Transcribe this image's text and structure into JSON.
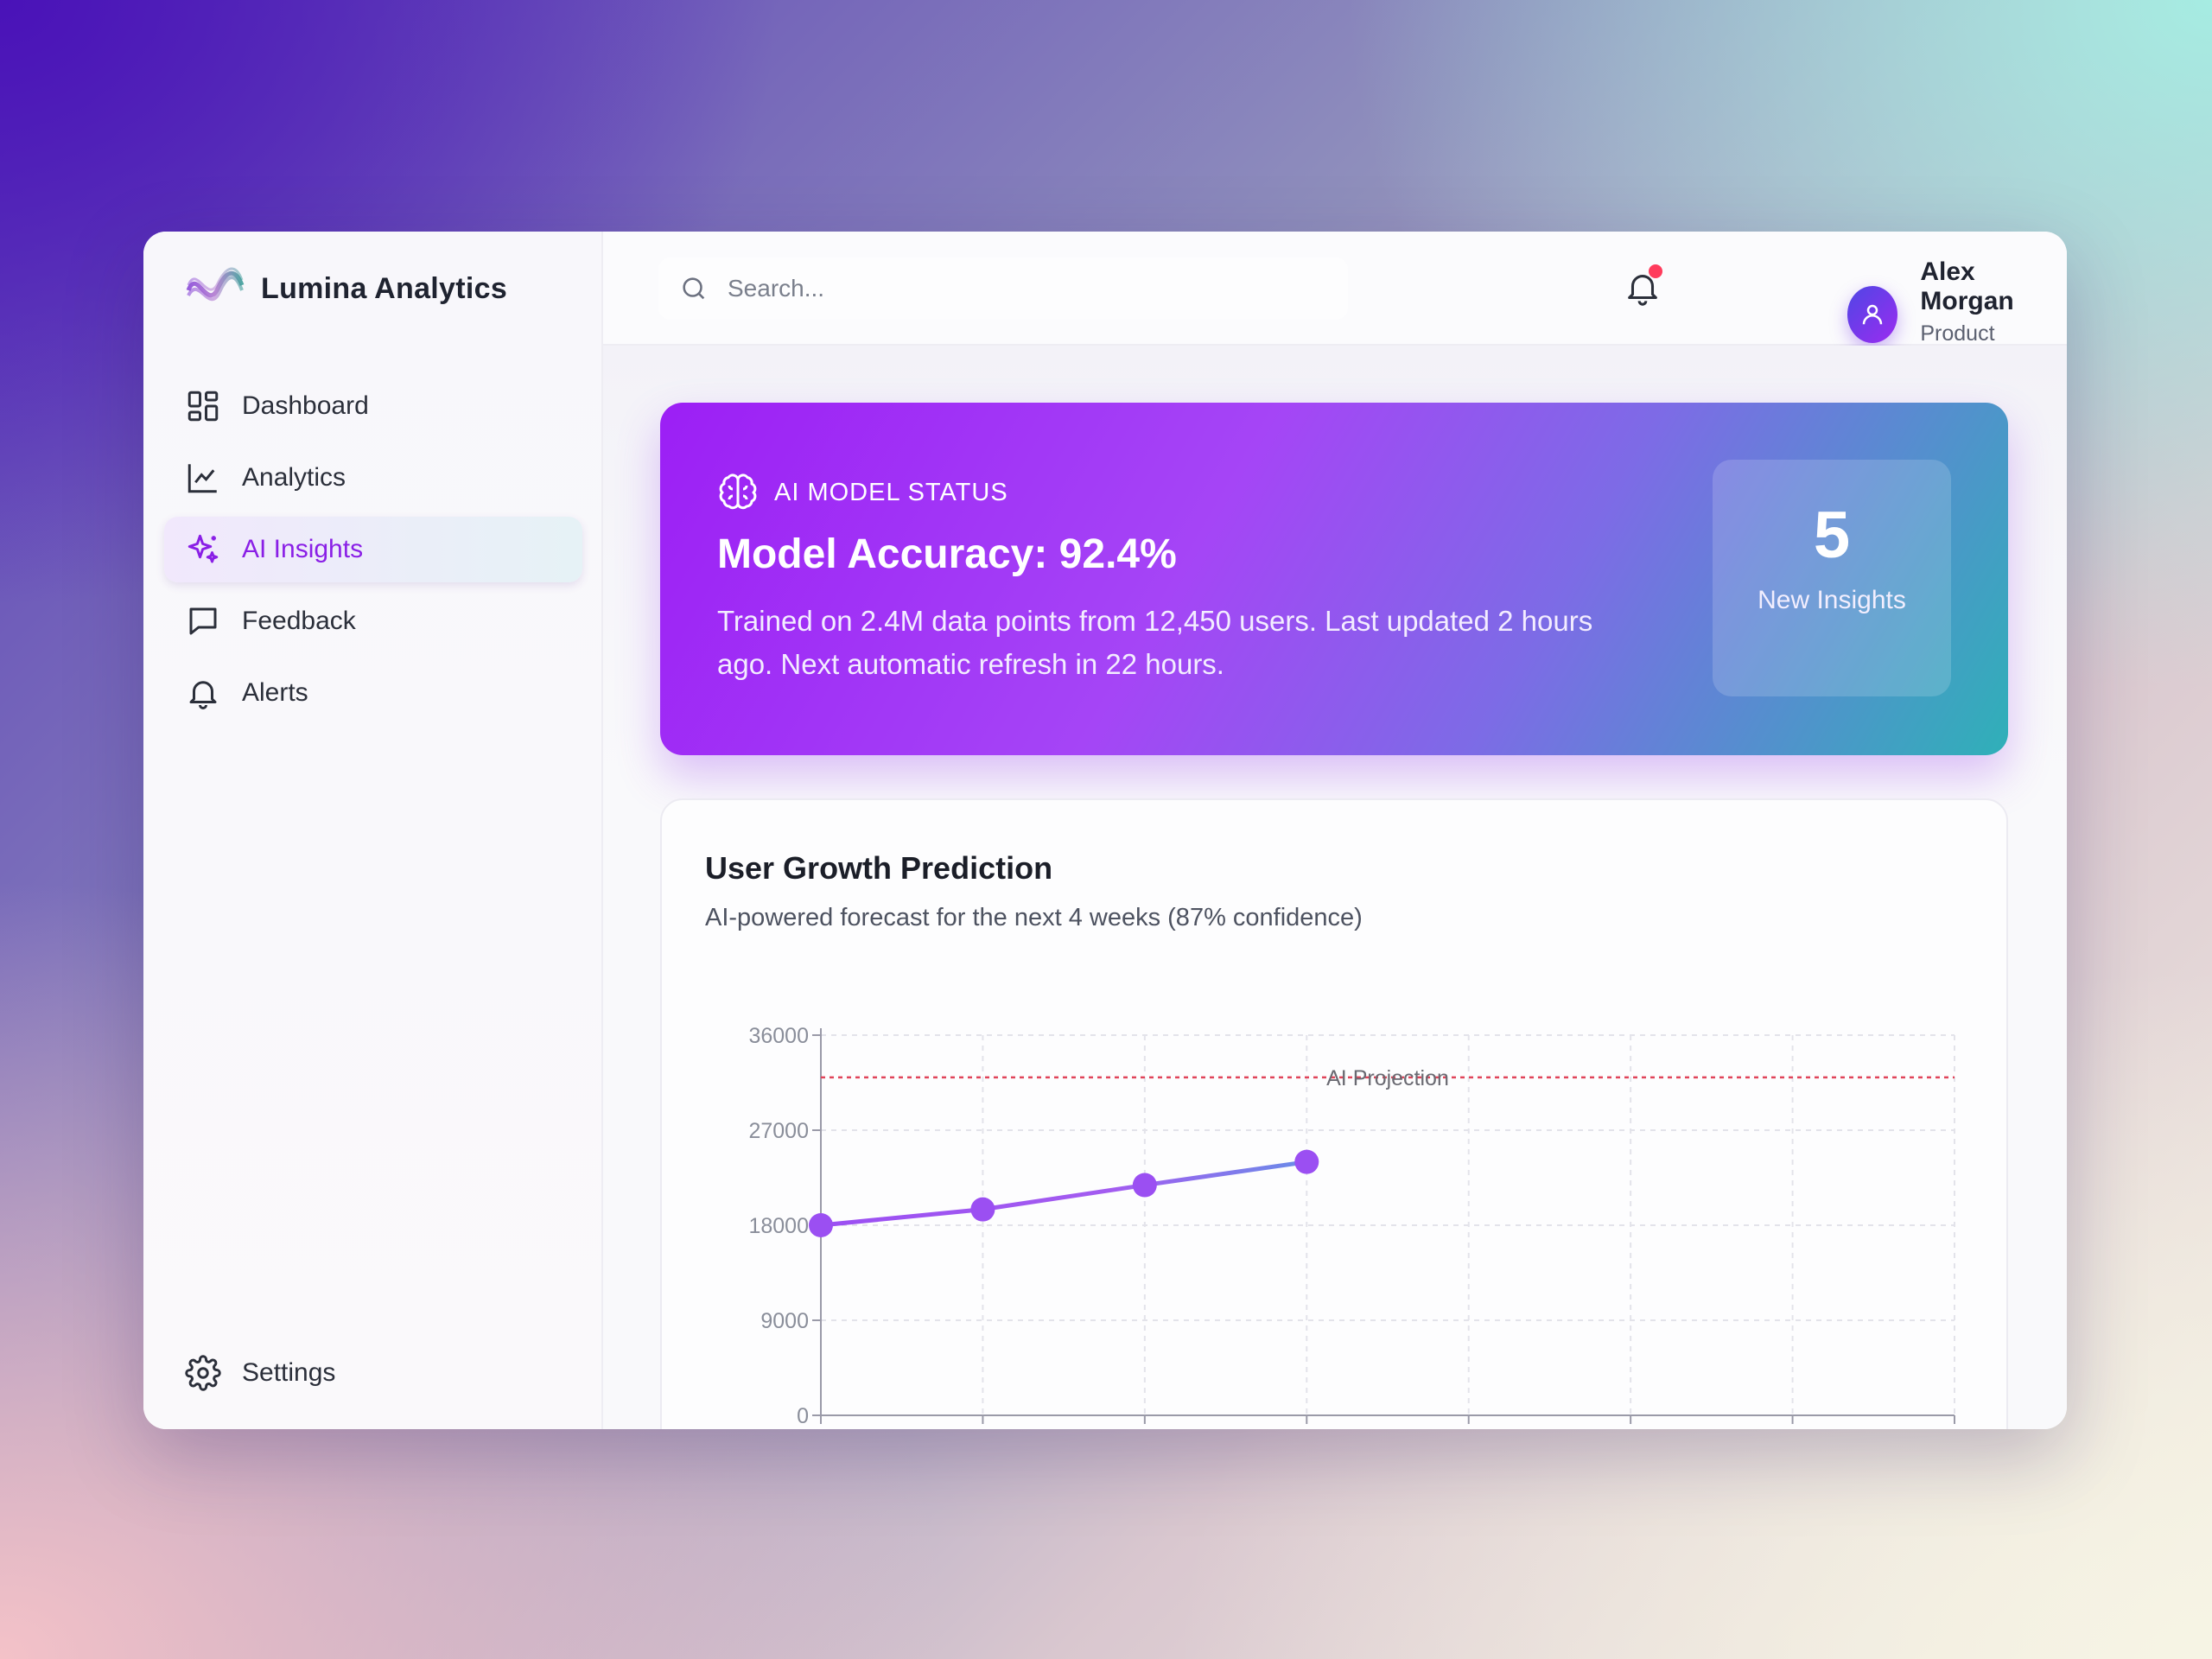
{
  "brand": {
    "name": "Lumina Analytics"
  },
  "search": {
    "placeholder": "Search..."
  },
  "user": {
    "name": "Alex Morgan",
    "role": "Product Manager"
  },
  "nav": {
    "items": [
      {
        "label": "Dashboard",
        "icon": "grid-icon"
      },
      {
        "label": "Analytics",
        "icon": "line-chart-icon"
      },
      {
        "label": "AI Insights",
        "icon": "sparkle-icon",
        "active": true
      },
      {
        "label": "Feedback",
        "icon": "message-icon"
      },
      {
        "label": "Alerts",
        "icon": "bell-icon"
      }
    ],
    "settings": "Settings"
  },
  "status": {
    "label": "AI MODEL STATUS",
    "title": "Model Accuracy: 92.4%",
    "description": "Trained on 2.4M data points from 12,450 users. Last updated 2 hours ago. Next automatic refresh in 22 hours.",
    "insights_count": "5",
    "insights_label": "New Insights"
  },
  "chart": {
    "title": "User Growth Prediction",
    "subtitle": "AI-powered forecast for the next 4 weeks (87% confidence)"
  },
  "colors": {
    "accent": "#8a1fe6",
    "line": "#a05cf0",
    "reference_line": "#e0445a",
    "notification_dot": "#ff3b5c"
  },
  "chart_data": {
    "type": "line",
    "x_points": 8,
    "values": [
      18000,
      19500,
      21800,
      24000
    ],
    "ylim": [
      0,
      36000
    ],
    "yticks": [
      0,
      9000,
      18000,
      27000,
      36000
    ],
    "reference_line": {
      "value": 32000,
      "label": "AI Projection"
    },
    "grid": true
  }
}
